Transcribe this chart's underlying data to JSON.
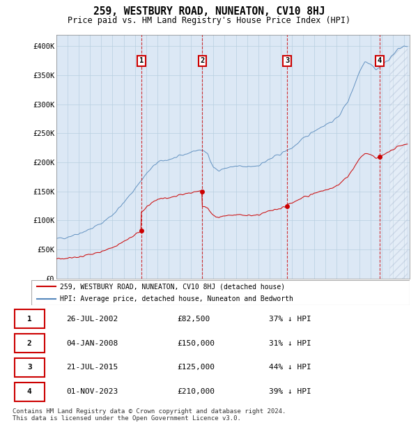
{
  "title": "259, WESTBURY ROAD, NUNEATON, CV10 8HJ",
  "subtitle": "Price paid vs. HM Land Registry's House Price Index (HPI)",
  "ylim": [
    0,
    420000
  ],
  "yticks": [
    0,
    50000,
    100000,
    150000,
    200000,
    250000,
    300000,
    350000,
    400000
  ],
  "ytick_labels": [
    "£0",
    "£50K",
    "£100K",
    "£150K",
    "£200K",
    "£250K",
    "£300K",
    "£350K",
    "£400K"
  ],
  "xlim_start": 1995.0,
  "xlim_end": 2026.5,
  "legend_red": "259, WESTBURY ROAD, NUNEATON, CV10 8HJ (detached house)",
  "legend_blue": "HPI: Average price, detached house, Nuneaton and Bedworth",
  "transactions": [
    {
      "num": 1,
      "date": "26-JUL-2002",
      "price": 82500,
      "pct": "37%",
      "x_year": 2002.57
    },
    {
      "num": 2,
      "date": "04-JAN-2008",
      "price": 150000,
      "pct": "31%",
      "x_year": 2008.01
    },
    {
      "num": 3,
      "date": "21-JUL-2015",
      "price": 125000,
      "pct": "44%",
      "x_year": 2015.57
    },
    {
      "num": 4,
      "date": "01-NOV-2023",
      "price": 210000,
      "pct": "39%",
      "x_year": 2023.83
    }
  ],
  "table_rows": [
    {
      "num": 1,
      "date": "26-JUL-2002",
      "price": "£82,500",
      "pct": "37% ↓ HPI"
    },
    {
      "num": 2,
      "date": "04-JAN-2008",
      "price": "£150,000",
      "pct": "31% ↓ HPI"
    },
    {
      "num": 3,
      "date": "21-JUL-2015",
      "price": "£125,000",
      "pct": "44% ↓ HPI"
    },
    {
      "num": 4,
      "date": "01-NOV-2023",
      "price": "£210,000",
      "pct": "39% ↓ HPI"
    }
  ],
  "footer": "Contains HM Land Registry data © Crown copyright and database right 2024.\nThis data is licensed under the Open Government Licence v3.0.",
  "bg_color": "#dce8f5",
  "grid_color": "#b8cfe0",
  "red_color": "#cc0000",
  "blue_color": "#5588bb",
  "hatch_color": "#aabbcc"
}
